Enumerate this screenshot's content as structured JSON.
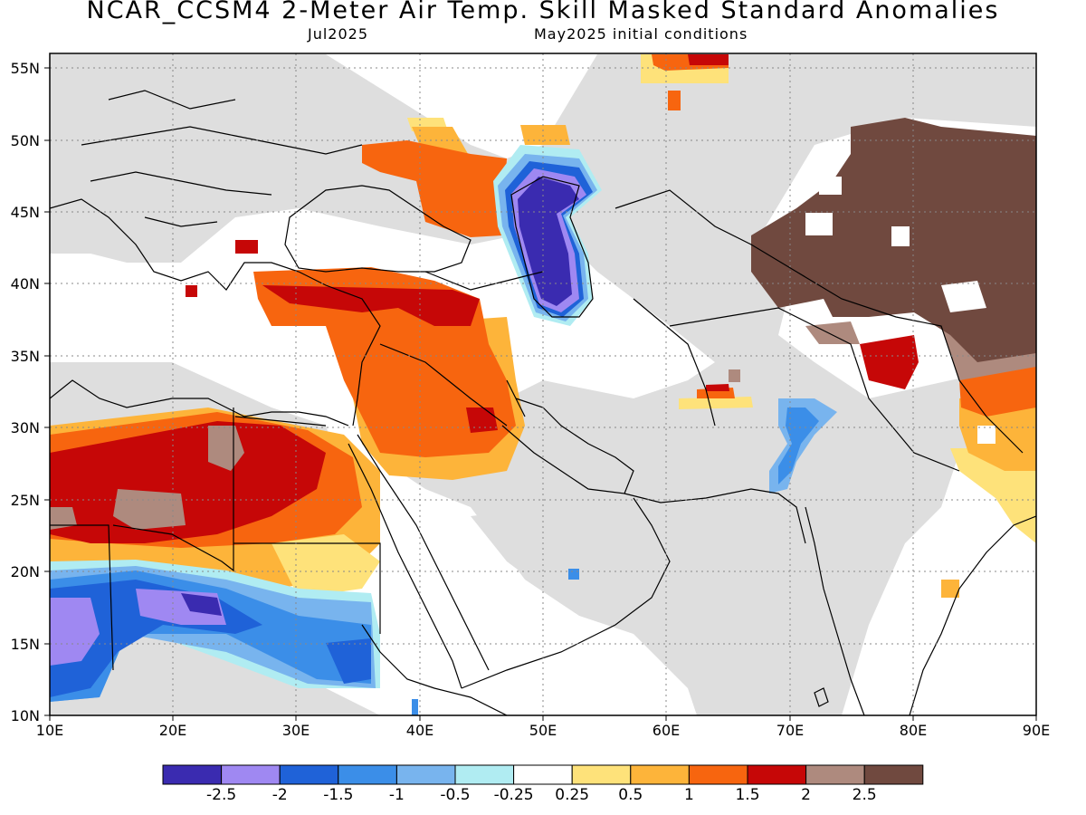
{
  "header": {
    "title": "NCAR_CCSM4 2-Meter Air Temp. Skill Masked Standard Anomalies",
    "valid_month": "Jul2025",
    "init_conditions": "May2025 initial conditions"
  },
  "axes": {
    "lon_ticks": [
      "10E",
      "20E",
      "30E",
      "40E",
      "50E",
      "60E",
      "70E",
      "80E",
      "90E"
    ],
    "lat_ticks": [
      "55N",
      "50N",
      "45N",
      "40N",
      "35N",
      "30N",
      "25N",
      "20N",
      "15N",
      "10N"
    ],
    "lon_range": [
      10,
      90
    ],
    "lat_range": [
      10,
      56
    ],
    "grid": "dotted"
  },
  "colors": {
    "masked_gray": "#dedede",
    "neutral": "#ffffff",
    "coastline": "#000000"
  },
  "colorbar": {
    "bins": [
      {
        "color": "#3a2bb0"
      },
      {
        "color": "#9f88f2"
      },
      {
        "color": "#1f62d8"
      },
      {
        "color": "#3b8ee8"
      },
      {
        "color": "#78b4ee"
      },
      {
        "color": "#b0ecf2"
      },
      {
        "color": "#ffffff"
      },
      {
        "color": "#fee27a"
      },
      {
        "color": "#fdb43a"
      },
      {
        "color": "#f7650f"
      },
      {
        "color": "#c60707"
      },
      {
        "color": "#ae8a7e"
      },
      {
        "color": "#70493f"
      }
    ],
    "labels": [
      "-2.5",
      "-2",
      "-1.5",
      "-1",
      "-0.5",
      "-0.25",
      "0.25",
      "0.5",
      "1",
      "1.5",
      "2",
      "2.5"
    ]
  }
}
